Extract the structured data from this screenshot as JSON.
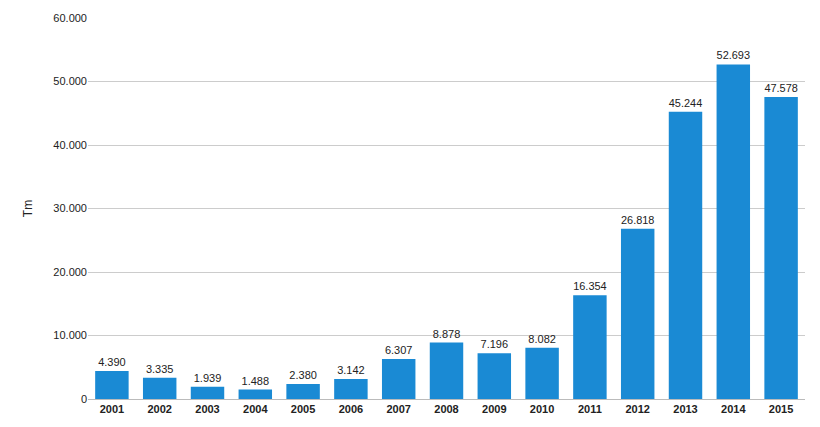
{
  "chart_data": {
    "type": "bar",
    "y_label": "Tm",
    "categories": [
      "2001",
      "2002",
      "2003",
      "2004",
      "2005",
      "2006",
      "2007",
      "2008",
      "2009",
      "2010",
      "2011",
      "2012",
      "2013",
      "2014",
      "2015"
    ],
    "values": [
      4390,
      3335,
      1939,
      1488,
      2380,
      3142,
      6307,
      8878,
      7196,
      8082,
      16354,
      26818,
      45244,
      52693,
      47578
    ],
    "value_labels": [
      "4.390",
      "3.335",
      "1.939",
      "1.488",
      "2.380",
      "3.142",
      "6.307",
      "8.878",
      "7.196",
      "8.082",
      "16.354",
      "26.818",
      "45.244",
      "52.693",
      "47.578"
    ],
    "color": "#1a8ad4",
    "ylim": [
      0,
      60000
    ],
    "yticks": [
      0,
      {
        "value": 10000,
        "label": "10.000"
      },
      {
        "value": 20000,
        "label": "20.000"
      },
      {
        "value": 30000,
        "label": "30.000"
      },
      {
        "value": 40000,
        "label": "40.000"
      },
      {
        "value": 50000,
        "label": "50.000"
      },
      {
        "value": 60000,
        "label": "60.000"
      }
    ],
    "grid": true,
    "data_labels": true
  }
}
